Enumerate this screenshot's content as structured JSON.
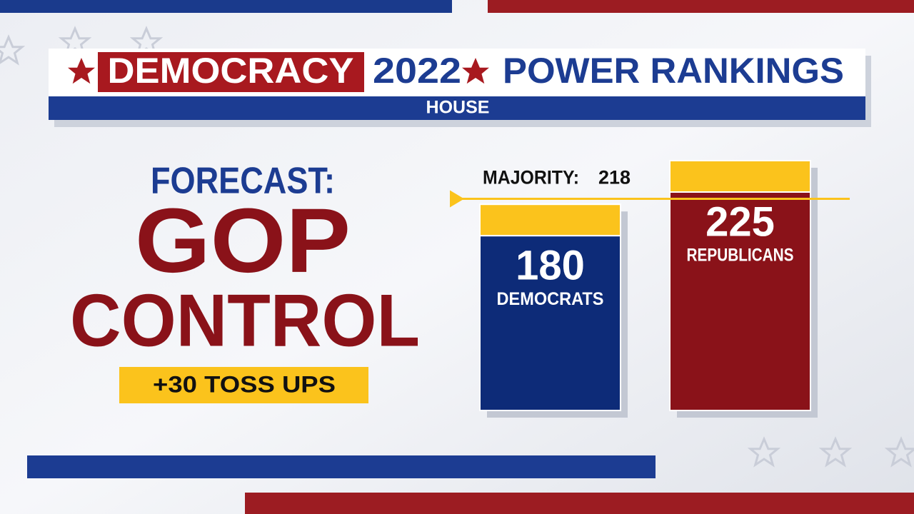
{
  "header": {
    "brand": "DEMOCRACY",
    "year": "2022",
    "title": "POWER RANKINGS",
    "subtitle": "HOUSE"
  },
  "forecast": {
    "label": "FORECAST:",
    "line1": "GOP",
    "line2": "CONTROL",
    "tossups": "+30 TOSS UPS"
  },
  "chart_data": {
    "type": "bar",
    "majority": {
      "label": "MAJORITY:",
      "value": 218
    },
    "categories": [
      "DEMOCRATS",
      "REPUBLICANS"
    ],
    "values": [
      180,
      225
    ],
    "colors": [
      "#0d2b78",
      "#8a1219"
    ],
    "highlight": "#fbc31c"
  }
}
